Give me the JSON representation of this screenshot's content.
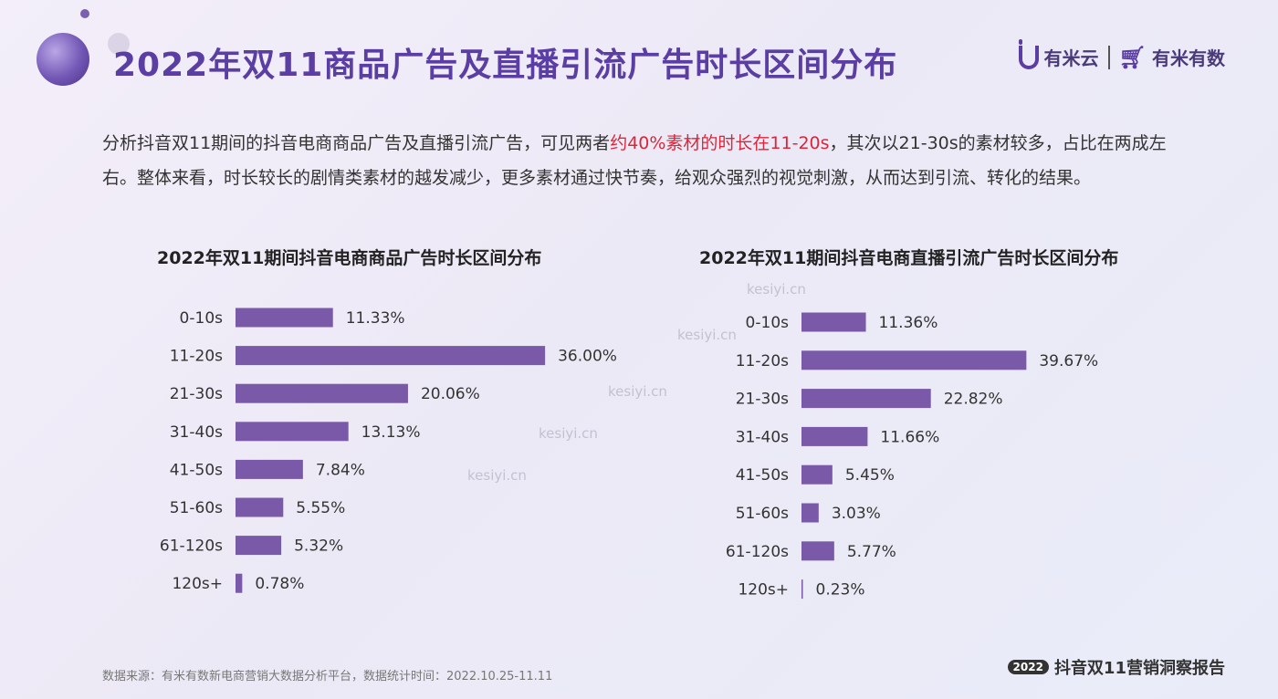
{
  "page": {
    "title": "2022年双11商品广告及直播引流广告时长区间分布",
    "brand_left": "有米云",
    "brand_right": "有米有数",
    "intro_before": "分析抖音双11期间的抖音电商商品广告及直播引流广告，可见两者",
    "intro_highlight": "约40%素材的时长在11-20s",
    "intro_after": "，其次以21-30s的素材较多，占比在两成左右。整体来看，时长较长的剧情类素材的越发减少，更多素材通过快节奏，给观众强烈的视觉刺激，从而达到引流、转化的结果。",
    "watermark": "kesiyi.cn",
    "source": "数据来源：有米有数新电商营销大数据分析平台，数据统计时间：2022.10.25-11.11",
    "report_year": "2022",
    "report_name": "抖音双11营销洞察报告",
    "colors": {
      "accent": "#5b3ea3",
      "bar": "#7a5aa8",
      "highlight": "#d9263a"
    }
  },
  "chart_data": [
    {
      "type": "bar",
      "orientation": "horizontal",
      "title": "2022年双11期间抖音电商商品广告时长区间分布",
      "categories": [
        "0-10s",
        "11-20s",
        "21-30s",
        "31-40s",
        "41-50s",
        "51-60s",
        "61-120s",
        "120s+"
      ],
      "values": [
        11.33,
        36.0,
        20.06,
        13.13,
        7.84,
        5.55,
        5.32,
        0.78
      ],
      "labels": [
        "11.33%",
        "36.00%",
        "20.06%",
        "13.13%",
        "7.84%",
        "5.55%",
        "5.32%",
        "0.78%"
      ],
      "unit": "%",
      "grid": false
    },
    {
      "type": "bar",
      "orientation": "horizontal",
      "title": "2022年双11期间抖音电商直播引流广告时长区间分布",
      "categories": [
        "0-10s",
        "11-20s",
        "21-30s",
        "31-40s",
        "41-50s",
        "51-60s",
        "61-120s",
        "120s+"
      ],
      "values": [
        11.36,
        39.67,
        22.82,
        11.66,
        5.45,
        3.03,
        5.77,
        0.23
      ],
      "labels": [
        "11.36%",
        "39.67%",
        "22.82%",
        "11.66%",
        "5.45%",
        "3.03%",
        "5.77%",
        "0.23%"
      ],
      "unit": "%",
      "grid": false
    }
  ]
}
